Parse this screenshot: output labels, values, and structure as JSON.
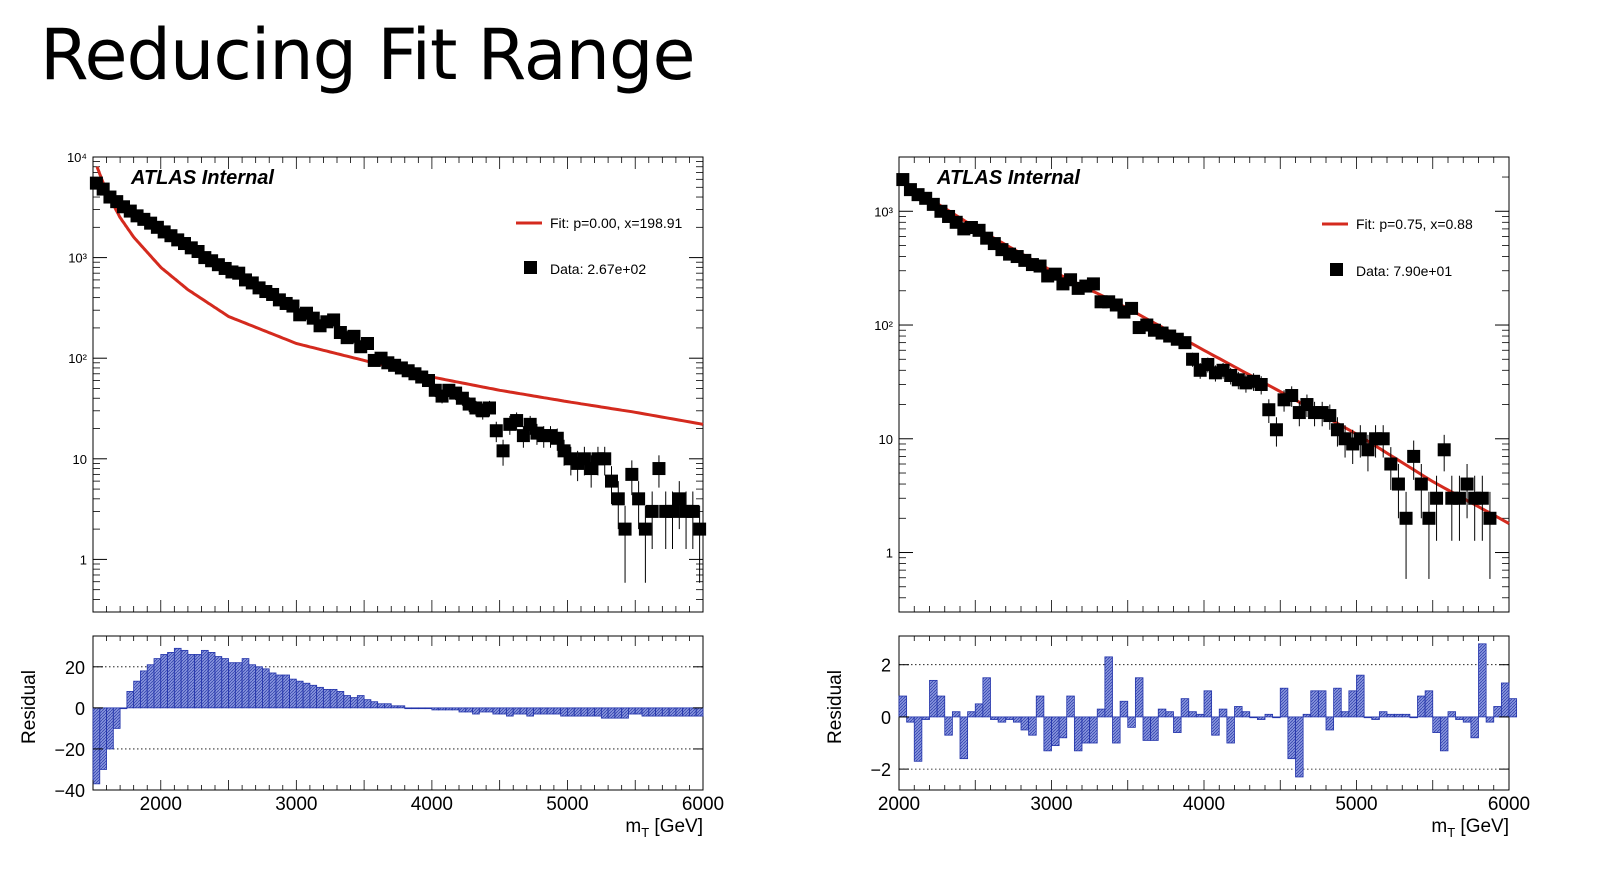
{
  "slide": {
    "title": "Reducing Fit Range"
  },
  "colors": {
    "fit": "#d42a1e",
    "data": "#000000",
    "residual_fill": "#5566cc",
    "residual_edge": "#2233aa"
  },
  "chart_data": [
    {
      "type": "scatter",
      "label": "ATLAS Internal",
      "log_y": true,
      "xlim": [
        1500,
        6000
      ],
      "ylim": [
        0.3,
        10000
      ],
      "x_ticks": [
        2000,
        3000,
        4000,
        5000,
        6000
      ],
      "y_ticks": [
        {
          "v": 1,
          "label": "1"
        },
        {
          "v": 10,
          "label": "10"
        },
        {
          "v": 100,
          "label": "10²"
        },
        {
          "v": 1000,
          "label": "10³"
        },
        {
          "v": 10000,
          "label": "10⁴"
        }
      ],
      "xlabel": "m_T [GeV]",
      "legend": {
        "fit": "Fit: p=0.00, x=198.91",
        "data": "Data: 2.67e+02"
      },
      "fit_curve": {
        "x": [
          1530,
          1600,
          1700,
          1800,
          2000,
          2200,
          2500,
          3000,
          3500,
          4000,
          4500,
          5000,
          5500,
          6000
        ],
        "y": [
          8000,
          4500,
          2500,
          1600,
          800,
          480,
          260,
          140,
          95,
          65,
          48,
          37,
          29,
          22
        ]
      },
      "data_points": [
        {
          "x": 1525,
          "y": 5500
        },
        {
          "x": 1575,
          "y": 4800
        },
        {
          "x": 1625,
          "y": 4000
        },
        {
          "x": 1675,
          "y": 3600
        },
        {
          "x": 1725,
          "y": 3200
        },
        {
          "x": 1775,
          "y": 2900
        },
        {
          "x": 1825,
          "y": 2600
        },
        {
          "x": 1875,
          "y": 2400
        },
        {
          "x": 1925,
          "y": 2200
        },
        {
          "x": 1975,
          "y": 2000
        },
        {
          "x": 2025,
          "y": 1800
        },
        {
          "x": 2075,
          "y": 1650
        },
        {
          "x": 2125,
          "y": 1500
        },
        {
          "x": 2175,
          "y": 1380
        },
        {
          "x": 2225,
          "y": 1250
        },
        {
          "x": 2275,
          "y": 1150
        },
        {
          "x": 2325,
          "y": 1000
        },
        {
          "x": 2375,
          "y": 930
        },
        {
          "x": 2425,
          "y": 850
        },
        {
          "x": 2475,
          "y": 780
        },
        {
          "x": 2525,
          "y": 720
        },
        {
          "x": 2575,
          "y": 700
        },
        {
          "x": 2625,
          "y": 600
        },
        {
          "x": 2675,
          "y": 560
        },
        {
          "x": 2725,
          "y": 500
        },
        {
          "x": 2775,
          "y": 460
        },
        {
          "x": 2825,
          "y": 430
        },
        {
          "x": 2875,
          "y": 380
        },
        {
          "x": 2925,
          "y": 350
        },
        {
          "x": 2975,
          "y": 330
        },
        {
          "x": 3025,
          "y": 270
        },
        {
          "x": 3075,
          "y": 280
        },
        {
          "x": 3125,
          "y": 250
        },
        {
          "x": 3175,
          "y": 210
        },
        {
          "x": 3225,
          "y": 230
        },
        {
          "x": 3275,
          "y": 240
        },
        {
          "x": 3325,
          "y": 180
        },
        {
          "x": 3375,
          "y": 160
        },
        {
          "x": 3425,
          "y": 165
        },
        {
          "x": 3475,
          "y": 130
        },
        {
          "x": 3525,
          "y": 140
        },
        {
          "x": 3575,
          "y": 95
        },
        {
          "x": 3625,
          "y": 100
        },
        {
          "x": 3675,
          "y": 90
        },
        {
          "x": 3725,
          "y": 85
        },
        {
          "x": 3775,
          "y": 80
        },
        {
          "x": 3825,
          "y": 75
        },
        {
          "x": 3875,
          "y": 70
        },
        {
          "x": 3925,
          "y": 65
        },
        {
          "x": 3975,
          "y": 60
        },
        {
          "x": 4025,
          "y": 48
        },
        {
          "x": 4075,
          "y": 42
        },
        {
          "x": 4125,
          "y": 48
        },
        {
          "x": 4175,
          "y": 45
        },
        {
          "x": 4225,
          "y": 40
        },
        {
          "x": 4275,
          "y": 35
        },
        {
          "x": 4325,
          "y": 32
        },
        {
          "x": 4375,
          "y": 30
        },
        {
          "x": 4425,
          "y": 32
        },
        {
          "x": 4475,
          "y": 19
        },
        {
          "x": 4525,
          "y": 12
        },
        {
          "x": 4575,
          "y": 22
        },
        {
          "x": 4625,
          "y": 24
        },
        {
          "x": 4675,
          "y": 17
        },
        {
          "x": 4725,
          "y": 22
        },
        {
          "x": 4775,
          "y": 18
        },
        {
          "x": 4825,
          "y": 17
        },
        {
          "x": 4875,
          "y": 17
        },
        {
          "x": 4925,
          "y": 16
        },
        {
          "x": 4975,
          "y": 12
        },
        {
          "x": 5025,
          "y": 10
        },
        {
          "x": 5075,
          "y": 9
        },
        {
          "x": 5125,
          "y": 10
        },
        {
          "x": 5175,
          "y": 8
        },
        {
          "x": 5225,
          "y": 10
        },
        {
          "x": 5275,
          "y": 10
        },
        {
          "x": 5325,
          "y": 6
        },
        {
          "x": 5375,
          "y": 4
        },
        {
          "x": 5425,
          "y": 2
        },
        {
          "x": 5475,
          "y": 7
        },
        {
          "x": 5525,
          "y": 4
        },
        {
          "x": 5575,
          "y": 2
        },
        {
          "x": 5625,
          "y": 3
        },
        {
          "x": 5675,
          "y": 8
        },
        {
          "x": 5725,
          "y": 3
        },
        {
          "x": 5775,
          "y": 3
        },
        {
          "x": 5825,
          "y": 4
        },
        {
          "x": 5875,
          "y": 3
        },
        {
          "x": 5925,
          "y": 3
        },
        {
          "x": 5975,
          "y": 2
        }
      ],
      "residual": {
        "ylabel": "Residual",
        "ylim": [
          -40,
          35
        ],
        "y_ticks": [
          {
            "v": 20,
            "label": "20"
          },
          {
            "v": 0,
            "label": "0"
          },
          {
            "v": -20,
            "label": "−20"
          },
          {
            "v": -40,
            "label": "−40"
          }
        ],
        "bin_width": 50,
        "x_start": 1500,
        "values": [
          -37,
          -30,
          -20,
          -10,
          0,
          8,
          13,
          18,
          21,
          24,
          26,
          27,
          29,
          28,
          26,
          26,
          28,
          27,
          25,
          24,
          22,
          22,
          24,
          21,
          20,
          19,
          17,
          16,
          16,
          14,
          13,
          12,
          11,
          10,
          9,
          9,
          8,
          6,
          5,
          6,
          4,
          3,
          2,
          2,
          1,
          1,
          0,
          0,
          0,
          0,
          -1,
          -1,
          -1,
          -1,
          -2,
          -2,
          -3,
          -2,
          -2,
          -3,
          -3,
          -4,
          -3,
          -3,
          -4,
          -3,
          -3,
          -3,
          -3,
          -4,
          -4,
          -4,
          -4,
          -4,
          -4,
          -5,
          -5,
          -5,
          -5,
          -3,
          -3,
          -4,
          -4,
          -4,
          -4,
          -4,
          -4,
          -4,
          -4,
          -4
        ]
      }
    },
    {
      "type": "scatter",
      "label": "ATLAS Internal",
      "log_y": true,
      "xlim": [
        2000,
        6000
      ],
      "ylim": [
        0.3,
        3000
      ],
      "x_ticks": [
        2000,
        3000,
        4000,
        5000,
        6000
      ],
      "y_ticks": [
        {
          "v": 1,
          "label": "1"
        },
        {
          "v": 10,
          "label": "10"
        },
        {
          "v": 100,
          "label": "10²"
        },
        {
          "v": 1000,
          "label": "10³"
        }
      ],
      "xlabel": "m_T [GeV]",
      "legend": {
        "fit": "Fit: p=0.75, x=0.88",
        "data": "Data: 7.90e+01"
      },
      "fit_curve": {
        "x": [
          2000,
          2500,
          3000,
          3500,
          4000,
          4500,
          5000,
          5500,
          6000
        ],
        "y": [
          1900,
          720,
          300,
          140,
          60,
          26,
          11,
          4.2,
          1.8
        ]
      },
      "data_points": [
        {
          "x": 2025,
          "y": 1900
        },
        {
          "x": 2075,
          "y": 1550
        },
        {
          "x": 2125,
          "y": 1400
        },
        {
          "x": 2175,
          "y": 1300
        },
        {
          "x": 2225,
          "y": 1150
        },
        {
          "x": 2275,
          "y": 1000
        },
        {
          "x": 2325,
          "y": 900
        },
        {
          "x": 2375,
          "y": 800
        },
        {
          "x": 2425,
          "y": 700
        },
        {
          "x": 2475,
          "y": 720
        },
        {
          "x": 2525,
          "y": 680
        },
        {
          "x": 2575,
          "y": 580
        },
        {
          "x": 2625,
          "y": 520
        },
        {
          "x": 2675,
          "y": 460
        },
        {
          "x": 2725,
          "y": 420
        },
        {
          "x": 2775,
          "y": 400
        },
        {
          "x": 2825,
          "y": 370
        },
        {
          "x": 2875,
          "y": 340
        },
        {
          "x": 2925,
          "y": 330
        },
        {
          "x": 2975,
          "y": 270
        },
        {
          "x": 3025,
          "y": 280
        },
        {
          "x": 3075,
          "y": 230
        },
        {
          "x": 3125,
          "y": 250
        },
        {
          "x": 3175,
          "y": 210
        },
        {
          "x": 3225,
          "y": 220
        },
        {
          "x": 3275,
          "y": 230
        },
        {
          "x": 3325,
          "y": 160
        },
        {
          "x": 3375,
          "y": 160
        },
        {
          "x": 3425,
          "y": 150
        },
        {
          "x": 3475,
          "y": 130
        },
        {
          "x": 3525,
          "y": 140
        },
        {
          "x": 3575,
          "y": 95
        },
        {
          "x": 3625,
          "y": 100
        },
        {
          "x": 3675,
          "y": 90
        },
        {
          "x": 3725,
          "y": 85
        },
        {
          "x": 3775,
          "y": 80
        },
        {
          "x": 3825,
          "y": 75
        },
        {
          "x": 3875,
          "y": 70
        },
        {
          "x": 3925,
          "y": 50
        },
        {
          "x": 3975,
          "y": 40
        },
        {
          "x": 4025,
          "y": 45
        },
        {
          "x": 4075,
          "y": 38
        },
        {
          "x": 4125,
          "y": 40
        },
        {
          "x": 4175,
          "y": 36
        },
        {
          "x": 4225,
          "y": 33
        },
        {
          "x": 4275,
          "y": 31
        },
        {
          "x": 4325,
          "y": 32
        },
        {
          "x": 4375,
          "y": 30
        },
        {
          "x": 4425,
          "y": 18
        },
        {
          "x": 4475,
          "y": 12
        },
        {
          "x": 4525,
          "y": 22
        },
        {
          "x": 4575,
          "y": 24
        },
        {
          "x": 4625,
          "y": 17
        },
        {
          "x": 4675,
          "y": 20
        },
        {
          "x": 4725,
          "y": 17
        },
        {
          "x": 4775,
          "y": 17
        },
        {
          "x": 4825,
          "y": 16
        },
        {
          "x": 4875,
          "y": 12
        },
        {
          "x": 4925,
          "y": 10
        },
        {
          "x": 4975,
          "y": 9
        },
        {
          "x": 5025,
          "y": 10
        },
        {
          "x": 5075,
          "y": 8
        },
        {
          "x": 5125,
          "y": 10
        },
        {
          "x": 5175,
          "y": 10
        },
        {
          "x": 5225,
          "y": 6
        },
        {
          "x": 5275,
          "y": 4
        },
        {
          "x": 5325,
          "y": 2
        },
        {
          "x": 5375,
          "y": 7
        },
        {
          "x": 5425,
          "y": 4
        },
        {
          "x": 5475,
          "y": 2
        },
        {
          "x": 5525,
          "y": 3
        },
        {
          "x": 5575,
          "y": 8
        },
        {
          "x": 5625,
          "y": 3
        },
        {
          "x": 5675,
          "y": 3
        },
        {
          "x": 5725,
          "y": 4
        },
        {
          "x": 5775,
          "y": 3
        },
        {
          "x": 5825,
          "y": 3
        },
        {
          "x": 5875,
          "y": 2
        }
      ],
      "residual": {
        "ylabel": "Residual",
        "ylim": [
          -2.8,
          3.1
        ],
        "y_ticks": [
          {
            "v": 2,
            "label": "2"
          },
          {
            "v": 0,
            "label": "0"
          },
          {
            "v": -2,
            "label": "−2"
          }
        ],
        "bin_width": 50,
        "x_start": 2000,
        "values": [
          0.8,
          -0.2,
          -1.7,
          -0.1,
          1.4,
          0.8,
          -0.7,
          0.2,
          -1.6,
          0.2,
          0.5,
          1.5,
          -0.1,
          -0.2,
          -0.1,
          -0.2,
          -0.5,
          -0.7,
          0.8,
          -1.3,
          -1.1,
          -0.8,
          0.8,
          -1.3,
          -1.0,
          -1.0,
          0.3,
          2.3,
          -1.0,
          0.6,
          -0.4,
          1.5,
          -0.9,
          -0.9,
          0.3,
          0.2,
          -0.6,
          0.7,
          0.2,
          0.1,
          1.0,
          -0.7,
          0.3,
          -1.0,
          0.4,
          0.2,
          0.0,
          -0.1,
          0.1,
          0.0,
          1.1,
          -1.6,
          -2.3,
          0.1,
          1.0,
          1.0,
          -0.5,
          1.1,
          0.2,
          1.0,
          1.6,
          0.0,
          -0.1,
          0.2,
          0.1,
          0.1,
          0.1,
          0.0,
          0.8,
          1.0,
          -0.6,
          -1.3,
          0.2,
          -0.1,
          -0.2,
          -0.8,
          2.8,
          -0.2,
          0.4,
          1.3,
          0.7
        ]
      }
    }
  ]
}
